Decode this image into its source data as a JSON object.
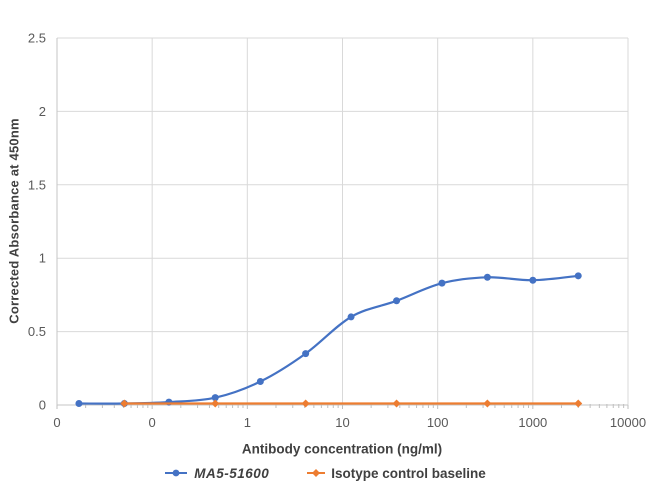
{
  "chart_data": {
    "type": "line",
    "title": "",
    "xlabel": "Antibody concentration (ng/ml)",
    "ylabel": "Corrected Absorbance at 450nm",
    "x_scale": "log",
    "xlim": [
      0.01,
      10000
    ],
    "ylim": [
      0,
      2.5
    ],
    "grid": true,
    "legend_position": "bottom",
    "x_tick_values": [
      0.01,
      0.1,
      1,
      10,
      100,
      1000,
      10000
    ],
    "x_tick_labels": [
      "0",
      "0",
      "1",
      "10",
      "100",
      "1000",
      "10000"
    ],
    "y_tick_values": [
      0,
      0.5,
      1,
      1.5,
      2,
      2.5
    ],
    "y_tick_labels": [
      "0",
      "0.5",
      "1",
      "1.5",
      "2",
      "2.5"
    ],
    "series": [
      {
        "name": "MA5-51600",
        "color": "#4472C4",
        "marker": "circle",
        "x": [
          0.017,
          0.051,
          0.15,
          0.46,
          1.37,
          4.1,
          12.3,
          37,
          111,
          333,
          1000,
          3000
        ],
        "y": [
          0.01,
          0.01,
          0.02,
          0.05,
          0.16,
          0.35,
          0.6,
          0.71,
          0.83,
          0.87,
          0.85,
          0.88
        ]
      },
      {
        "name": "Isotype control baseline",
        "color": "#ED7D31",
        "marker": "diamond",
        "x": [
          0.051,
          0.46,
          4.1,
          37,
          333,
          3000
        ],
        "y": [
          0.01,
          0.01,
          0.01,
          0.01,
          0.01,
          0.01
        ]
      }
    ],
    "colors": {
      "gridline": "#D9D9D9",
      "axis_line": "#C6C6C6",
      "tick_mark": "#BFBFBF",
      "tick_label": "#595959",
      "axis_title": "#404040"
    }
  }
}
